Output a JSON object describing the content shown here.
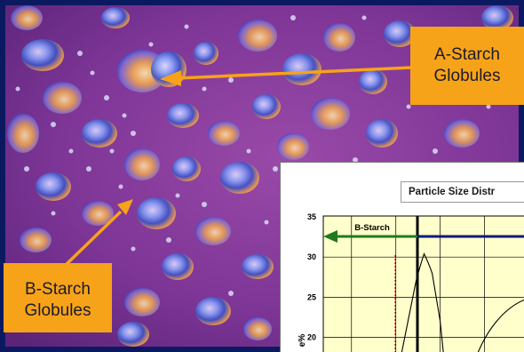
{
  "callouts": {
    "a_starch_line1": "A-Starch",
    "a_starch_line2": "Globules",
    "b_starch_line1": "B-Starch",
    "b_starch_line2": "Globules"
  },
  "colors": {
    "background_magenta": "#8c3a9c",
    "callout_orange": "#f7a319",
    "arrow_orange": "#f7a319",
    "plot_background": "#ffffcc",
    "arrow_green": "#1f7a1f",
    "arrow_navy": "#001a80",
    "marker_red": "#cc0000"
  },
  "chart_data": {
    "type": "line",
    "title": "Particle Size Distr",
    "ylabel": "e%",
    "y_ticks": [
      "35",
      "30",
      "25",
      "20"
    ],
    "ylim": [
      17,
      35
    ],
    "annotation": "B-Starch",
    "series": [
      {
        "values": [
          [
            0.38,
            17
          ],
          [
            0.42,
            22
          ],
          [
            0.46,
            27
          ],
          [
            0.5,
            30.4
          ],
          [
            0.54,
            28
          ],
          [
            0.58,
            22
          ],
          [
            0.6,
            17
          ]
        ]
      }
    ],
    "grid": true
  }
}
